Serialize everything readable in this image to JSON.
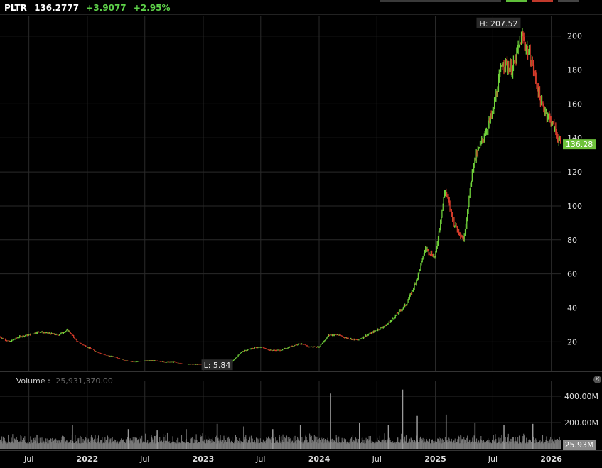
{
  "header": {
    "symbol": "PLTR",
    "last": "136.2777",
    "change": "+3.9077",
    "change_pct": "+2.95%"
  },
  "volume_panel": {
    "title": "Volume :",
    "value": "25,931,370.00",
    "badge": "25.93M"
  },
  "colors": {
    "up": "#6fd13a",
    "down": "#d63b2a",
    "grid": "#2a2a2a",
    "badge": "#6ec23a",
    "volume": "#7a7a7a"
  },
  "chart_data": {
    "type": "line",
    "price": {
      "ylim": [
        3,
        212
      ],
      "yticks": [
        20,
        40,
        60,
        80,
        100,
        120,
        140,
        160,
        180,
        200
      ],
      "high_label": "H: 207.52",
      "low_label": "L: 5.84",
      "last_badge": "136.28",
      "x_start": "2021-04-01",
      "x_end": "2026-01-31",
      "points": [
        [
          "2021-04-01",
          23
        ],
        [
          "2021-05-01",
          20
        ],
        [
          "2021-06-01",
          23
        ],
        [
          "2021-07-01",
          24
        ],
        [
          "2021-08-01",
          26
        ],
        [
          "2021-09-01",
          25
        ],
        [
          "2021-10-01",
          24
        ],
        [
          "2021-11-01",
          27
        ],
        [
          "2021-12-01",
          20
        ],
        [
          "2022-01-01",
          17
        ],
        [
          "2022-02-01",
          14
        ],
        [
          "2022-03-01",
          12
        ],
        [
          "2022-04-01",
          11
        ],
        [
          "2022-05-01",
          9
        ],
        [
          "2022-06-01",
          8
        ],
        [
          "2022-07-01",
          9
        ],
        [
          "2022-08-01",
          9
        ],
        [
          "2022-09-01",
          8
        ],
        [
          "2022-10-01",
          8
        ],
        [
          "2022-11-01",
          7
        ],
        [
          "2022-12-01",
          6.5
        ],
        [
          "2023-01-01",
          6.5
        ],
        [
          "2023-02-01",
          8
        ],
        [
          "2023-03-01",
          8
        ],
        [
          "2023-04-01",
          8
        ],
        [
          "2023-05-01",
          14
        ],
        [
          "2023-06-01",
          16
        ],
        [
          "2023-07-01",
          17
        ],
        [
          "2023-08-01",
          15
        ],
        [
          "2023-09-01",
          15
        ],
        [
          "2023-10-01",
          17
        ],
        [
          "2023-11-01",
          19
        ],
        [
          "2023-12-01",
          17
        ],
        [
          "2024-01-01",
          17
        ],
        [
          "2024-02-01",
          24
        ],
        [
          "2024-03-01",
          24
        ],
        [
          "2024-04-01",
          22
        ],
        [
          "2024-05-01",
          21
        ],
        [
          "2024-06-01",
          24
        ],
        [
          "2024-07-01",
          27
        ],
        [
          "2024-08-01",
          30
        ],
        [
          "2024-09-01",
          36
        ],
        [
          "2024-10-01",
          42
        ],
        [
          "2024-11-01",
          55
        ],
        [
          "2024-12-01",
          75
        ],
        [
          "2025-01-01",
          70
        ],
        [
          "2025-02-01",
          110
        ],
        [
          "2025-03-01",
          90
        ],
        [
          "2025-04-01",
          80
        ],
        [
          "2025-05-01",
          125
        ],
        [
          "2025-06-01",
          140
        ],
        [
          "2025-07-01",
          155
        ],
        [
          "2025-08-01",
          185
        ],
        [
          "2025-09-01",
          180
        ],
        [
          "2025-10-01",
          200
        ],
        [
          "2025-11-01",
          185
        ],
        [
          "2025-12-01",
          160
        ],
        [
          "2026-01-01",
          150
        ],
        [
          "2026-01-31",
          136
        ]
      ]
    },
    "volume": {
      "ylim": [
        0,
        470
      ],
      "yticks": [
        {
          "value": 200,
          "label": "200.00M"
        },
        {
          "value": 400,
          "label": "400.00M"
        }
      ],
      "spikes": [
        [
          "2021-11-15",
          180
        ],
        [
          "2022-05-10",
          150
        ],
        [
          "2022-08-09",
          140
        ],
        [
          "2022-11-08",
          150
        ],
        [
          "2023-02-14",
          190
        ],
        [
          "2023-05-09",
          170
        ],
        [
          "2023-08-08",
          150
        ],
        [
          "2023-11-03",
          180
        ],
        [
          "2024-02-06",
          420
        ],
        [
          "2024-05-07",
          200
        ],
        [
          "2024-08-06",
          180
        ],
        [
          "2024-09-20",
          450
        ],
        [
          "2024-11-05",
          250
        ],
        [
          "2025-02-04",
          260
        ],
        [
          "2025-05-06",
          200
        ],
        [
          "2025-08-05",
          180
        ],
        [
          "2025-11-04",
          190
        ]
      ]
    },
    "x_labels": [
      {
        "date": "2021-07-01",
        "label": "Jul",
        "bold": false
      },
      {
        "date": "2022-01-01",
        "label": "2022",
        "bold": true
      },
      {
        "date": "2022-07-01",
        "label": "Jul",
        "bold": false
      },
      {
        "date": "2023-01-01",
        "label": "2023",
        "bold": true
      },
      {
        "date": "2023-07-01",
        "label": "Jul",
        "bold": false
      },
      {
        "date": "2024-01-01",
        "label": "2024",
        "bold": true
      },
      {
        "date": "2024-07-01",
        "label": "Jul",
        "bold": false
      },
      {
        "date": "2025-01-01",
        "label": "2025",
        "bold": true
      },
      {
        "date": "2025-07-01",
        "label": "Jul",
        "bold": false
      },
      {
        "date": "2026-01-01",
        "label": "2026",
        "bold": true
      }
    ],
    "grid": true,
    "legend": "none"
  }
}
